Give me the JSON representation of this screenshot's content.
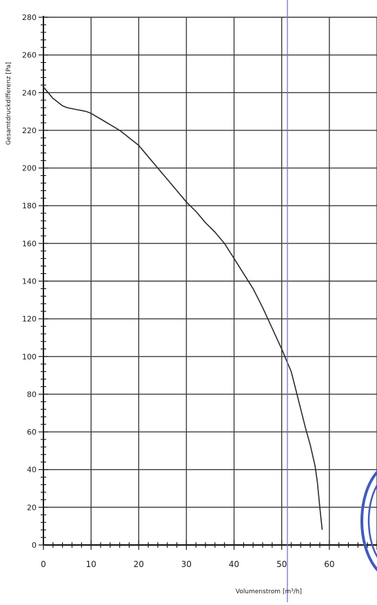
{
  "chart_data": {
    "type": "line",
    "xlabel": "Volumenstrom [m³/h]",
    "ylabel": "Gesamtdruckdifferenz [Pa]",
    "xlim": [
      0,
      70
    ],
    "ylim": [
      0,
      280
    ],
    "x_ticks": [
      0,
      10,
      20,
      30,
      40,
      50,
      60
    ],
    "y_ticks": [
      0,
      20,
      40,
      60,
      80,
      100,
      120,
      140,
      160,
      180,
      200,
      220,
      240,
      260,
      280
    ],
    "grid": true,
    "series": [
      {
        "x": [
          0,
          1,
          2,
          3,
          4,
          5,
          6,
          7,
          8,
          9,
          10,
          12,
          14,
          16,
          18,
          20,
          22,
          24,
          26,
          28,
          30,
          32,
          34,
          36,
          38,
          40,
          42,
          44,
          46,
          48,
          50,
          51,
          52,
          53,
          54,
          55,
          56,
          57,
          57.5,
          58,
          58.5
        ],
        "y": [
          243,
          240,
          237,
          235,
          233,
          232,
          231.5,
          231,
          230.5,
          230,
          229,
          226,
          223,
          220,
          216,
          212,
          206,
          200,
          194,
          188,
          182,
          177,
          171,
          166,
          160,
          152,
          144,
          136,
          126,
          115,
          104,
          98,
          92,
          82,
          72,
          62,
          53,
          42,
          33,
          20,
          8
        ]
      }
    ],
    "colors": {
      "line": "#2a2a2a",
      "grid": "#3a3a3a",
      "axis": "#1a1a1a",
      "marker": "#6f74d6",
      "stamp": "#3b5bcc"
    }
  }
}
